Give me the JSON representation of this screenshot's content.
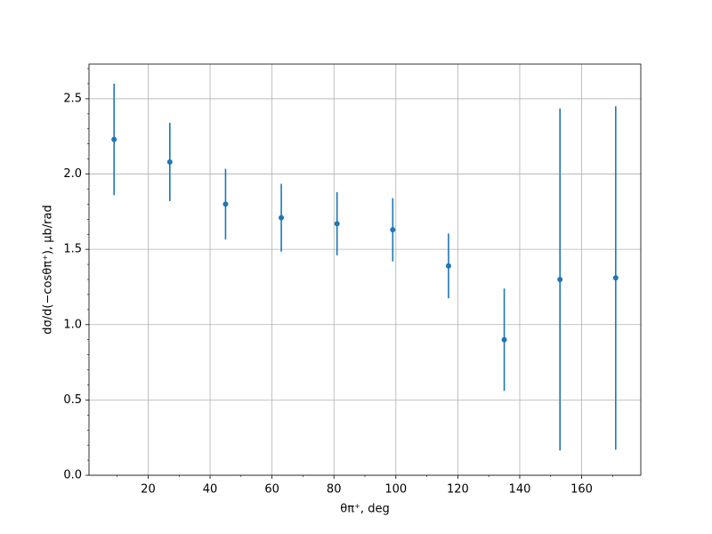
{
  "chart_data": {
    "type": "errorbar",
    "x_label": "θπ⁺, deg",
    "y_label": "dσ/d(−cosθπ⁺), μb/rad",
    "x": [
      9,
      27,
      45,
      63,
      81,
      99,
      117,
      135,
      153,
      171
    ],
    "series": [
      {
        "color": "#1f77b4",
        "values": [
          2.23,
          2.08,
          1.8,
          1.71,
          1.67,
          1.63,
          1.39,
          0.9,
          1.3,
          1.31
        ],
        "errors": [
          0.37,
          0.26,
          0.235,
          0.225,
          0.21,
          0.21,
          0.215,
          0.34,
          1.135,
          1.14
        ]
      }
    ],
    "xlim": [
      0.9,
      179.1
    ],
    "ylim": [
      0,
      2.73
    ],
    "xticks": [
      20,
      40,
      60,
      80,
      100,
      120,
      140,
      160
    ],
    "yticks": [
      {
        "value": 0,
        "label": "0.0"
      },
      0.5,
      {
        "value": 1,
        "label": "1.0"
      },
      1.5,
      {
        "value": 2,
        "label": "2.0"
      },
      2.5
    ],
    "minor_xticks": [
      10,
      30,
      50,
      70,
      90,
      110,
      130,
      150,
      170
    ],
    "minor_yticks": [
      0.1,
      0.2,
      0.3,
      0.4,
      0.6,
      0.7,
      0.8,
      0.9,
      1.1,
      1.2,
      1.3,
      1.4,
      1.6,
      1.7,
      1.8,
      1.9,
      2.1,
      2.2,
      2.3,
      2.4,
      2.6,
      2.7
    ],
    "grid": true
  }
}
